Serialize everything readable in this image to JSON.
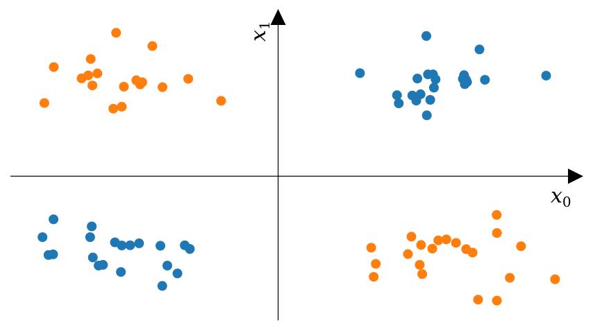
{
  "chart_data": {
    "type": "scatter",
    "xlabel": "x",
    "xlabel_sub": "0",
    "ylabel": "x",
    "ylabel_sub": "1",
    "xlim": [
      -1.21,
      1.37
    ],
    "ylim": [
      -0.62,
      0.72
    ],
    "grid": false,
    "axes": "centered-arrows",
    "colors": {
      "blue": "#1f77b4",
      "orange": "#ff7f0e"
    },
    "series": [
      {
        "color": "#1f77b4",
        "points": [
          [
            0.645,
            0.573
          ],
          [
            0.876,
            0.518
          ],
          [
            0.356,
            0.421
          ],
          [
            0.606,
            0.399
          ],
          [
            0.652,
            0.416
          ],
          [
            0.674,
            0.416
          ],
          [
            0.809,
            0.413
          ],
          [
            0.804,
            0.398
          ],
          [
            0.822,
            0.385
          ],
          [
            0.817,
            0.395
          ],
          [
            0.9,
            0.394
          ],
          [
            0.812,
            0.376
          ],
          [
            0.685,
            0.396
          ],
          [
            0.678,
            0.362
          ],
          [
            0.584,
            0.33
          ],
          [
            0.62,
            0.335
          ],
          [
            0.517,
            0.331
          ],
          [
            0.601,
            0.309
          ],
          [
            0.662,
            0.312
          ],
          [
            0.525,
            0.298
          ],
          [
            0.647,
            0.249
          ],
          [
            1.166,
            0.411
          ],
          [
            -0.977,
            -0.176
          ],
          [
            -1.025,
            -0.249
          ],
          [
            -0.811,
            -0.205
          ],
          [
            -0.818,
            -0.249
          ],
          [
            -0.71,
            -0.27
          ],
          [
            -0.68,
            -0.283
          ],
          [
            -0.644,
            -0.282
          ],
          [
            -0.605,
            -0.274
          ],
          [
            -0.512,
            -0.284
          ],
          [
            -0.406,
            -0.282
          ],
          [
            -0.384,
            -0.297
          ],
          [
            -0.999,
            -0.322
          ],
          [
            -0.979,
            -0.319
          ],
          [
            -0.806,
            -0.332
          ],
          [
            -0.781,
            -0.365
          ],
          [
            -0.762,
            -0.362
          ],
          [
            -0.684,
            -0.391
          ],
          [
            -0.482,
            -0.365
          ],
          [
            -0.438,
            -0.397
          ],
          [
            -0.504,
            -0.448
          ]
        ]
      },
      {
        "color": "#ff7f0e",
        "points": [
          [
            -0.705,
            0.586
          ],
          [
            -0.547,
            0.532
          ],
          [
            -0.815,
            0.479
          ],
          [
            -0.976,
            0.446
          ],
          [
            -0.786,
            0.42
          ],
          [
            -0.826,
            0.412
          ],
          [
            -0.855,
            0.4
          ],
          [
            -0.617,
            0.392
          ],
          [
            -0.591,
            0.384
          ],
          [
            -0.6,
            0.375
          ],
          [
            -0.808,
            0.371
          ],
          [
            -0.671,
            0.366
          ],
          [
            -0.503,
            0.364
          ],
          [
            -0.391,
            0.398
          ],
          [
            -0.248,
            0.308
          ],
          [
            -1.017,
            0.299
          ],
          [
            -0.68,
            0.284
          ],
          [
            -0.717,
            0.276
          ],
          [
            0.951,
            -0.158
          ],
          [
            0.952,
            -0.232
          ],
          [
            0.58,
            -0.247
          ],
          [
            0.622,
            -0.281
          ],
          [
            0.697,
            -0.262
          ],
          [
            0.732,
            -0.258
          ],
          [
            0.671,
            -0.296
          ],
          [
            0.774,
            -0.272
          ],
          [
            0.818,
            -0.298
          ],
          [
            0.846,
            -0.312
          ],
          [
            0.405,
            -0.292
          ],
          [
            0.565,
            -0.318
          ],
          [
            0.616,
            -0.362
          ],
          [
            1.057,
            -0.286
          ],
          [
            0.425,
            -0.358
          ],
          [
            0.627,
            -0.4
          ],
          [
            0.416,
            -0.411
          ],
          [
            1.008,
            -0.415
          ],
          [
            1.205,
            -0.421
          ],
          [
            0.87,
            -0.504
          ],
          [
            0.952,
            -0.508
          ]
        ]
      }
    ]
  }
}
